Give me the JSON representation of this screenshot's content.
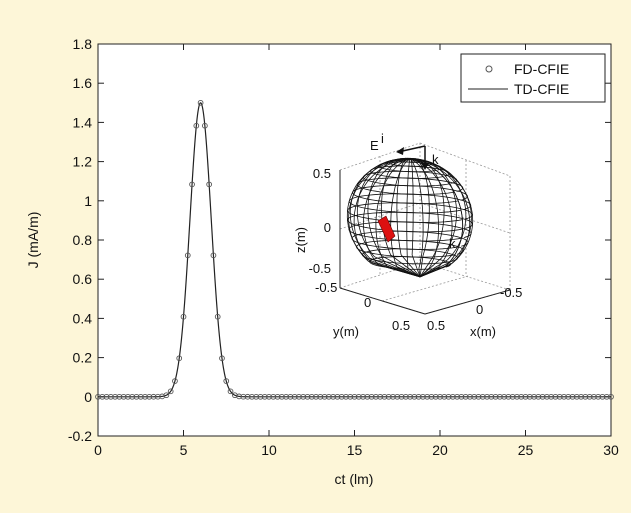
{
  "chart_data": {
    "type": "line",
    "xlabel": "ct (lm)",
    "ylabel": "J (mA/m)",
    "xlim": [
      0,
      30
    ],
    "ylim": [
      -0.2,
      1.8
    ],
    "x_ticks": [
      "0",
      "5",
      "10",
      "15",
      "20",
      "25",
      "30"
    ],
    "y_ticks": [
      "-0.2",
      "0",
      "0.2",
      "0.4",
      "0.6",
      "0.8",
      "1",
      "1.2",
      "1.4",
      "1.6",
      "1.8"
    ],
    "grid": false,
    "legend_position": "top-right",
    "series": [
      {
        "name": "FD-CFIE",
        "style": "circle-markers",
        "color": "#555555",
        "pulse": {
          "peak": 1.5,
          "center": 6.0,
          "sigma": 0.62
        },
        "marker_x_start": 0,
        "marker_x_end": 30,
        "marker_spacing": 0.25
      },
      {
        "name": "TD-CFIE",
        "style": "solid-line",
        "color": "#222222",
        "pulse": {
          "peak": 1.5,
          "center": 6.0,
          "sigma": 0.62
        }
      }
    ],
    "inset": {
      "type": "3d-mesh",
      "description_labels": {
        "incident_field": "E",
        "incident_field_superscript": "i",
        "wave_vector_top": "k",
        "wave_vector_side": "k"
      },
      "zlabel": "z(m)",
      "ylabel": "y(m)",
      "xlabel": "x(m)",
      "z_ticks": [
        "0.5",
        "0",
        "-0.5"
      ],
      "y_ticks": [
        "-0.5",
        "0",
        "0.5"
      ],
      "x_ticks": [
        "0.5",
        "0",
        "-0.5"
      ],
      "highlight_color": "#dd1111"
    }
  }
}
